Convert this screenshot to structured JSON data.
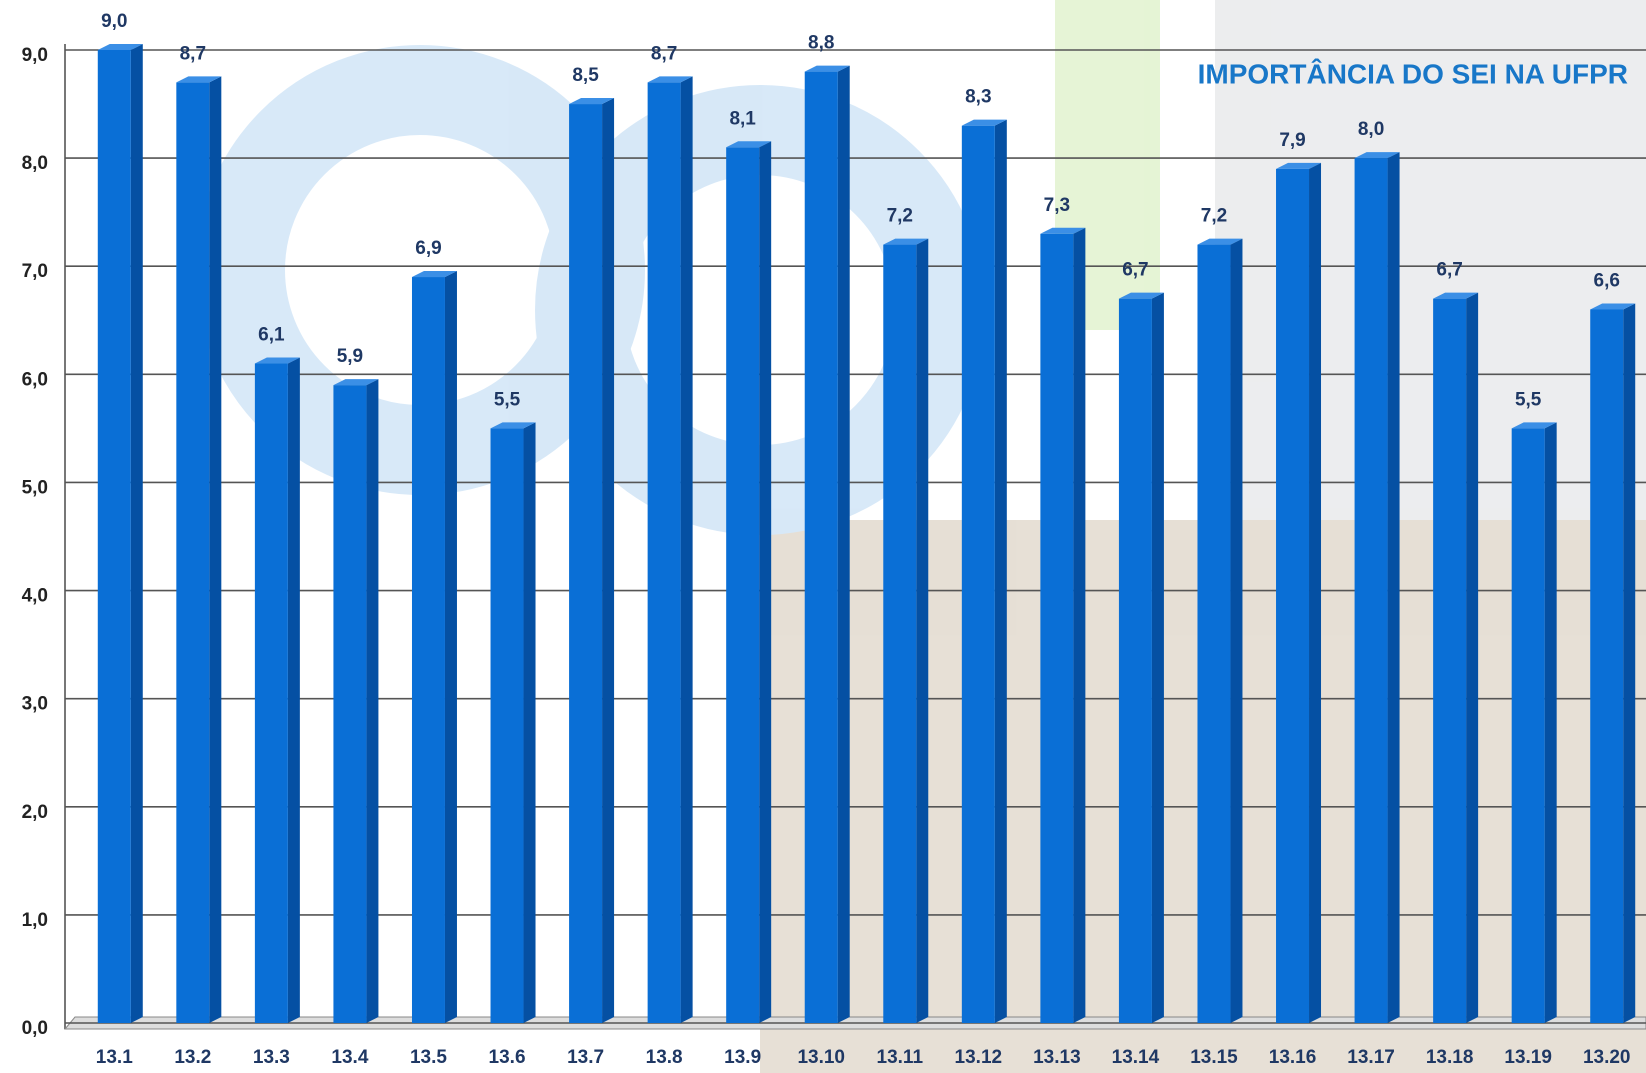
{
  "chart_data": {
    "type": "bar",
    "title": "IMPORTÂNCIA DO SEI NA UFPR",
    "categories": [
      "13.1",
      "13.2",
      "13.3",
      "13.4",
      "13.5",
      "13.6",
      "13.7",
      "13.8",
      "13.9",
      "13.10",
      "13.11",
      "13.12",
      "13.13",
      "13.14",
      "13.15",
      "13.16",
      "13.17",
      "13.18",
      "13.19",
      "13.20"
    ],
    "values": [
      9.0,
      8.7,
      6.1,
      5.9,
      6.9,
      5.5,
      8.5,
      8.7,
      8.1,
      8.8,
      7.2,
      8.3,
      7.3,
      6.7,
      7.2,
      7.9,
      8.0,
      6.7,
      5.5,
      6.6
    ],
    "value_labels": [
      "9,0",
      "8,7",
      "6,1",
      "5,9",
      "6,9",
      "5,5",
      "8,5",
      "8,7",
      "8,1",
      "8,8",
      "7,2",
      "8,3",
      "7,3",
      "6,7",
      "7,2",
      "7,9",
      "8,0",
      "6,7",
      "5,5",
      "6,6"
    ],
    "color": "#0a6fd6",
    "ylim": [
      0,
      9
    ],
    "yticks": [
      {
        "value": 0,
        "label": "0,0"
      },
      {
        "value": 1,
        "label": "1,0"
      },
      {
        "value": 2,
        "label": "2,0"
      },
      {
        "value": 3,
        "label": "3,0"
      },
      {
        "value": 4,
        "label": "4,0"
      },
      {
        "value": 5,
        "label": "5,0"
      },
      {
        "value": 6,
        "label": "6,0"
      },
      {
        "value": 7,
        "label": "7,0"
      },
      {
        "value": 8,
        "label": "8,0"
      },
      {
        "value": 9,
        "label": "9,0"
      }
    ],
    "grid": true
  }
}
